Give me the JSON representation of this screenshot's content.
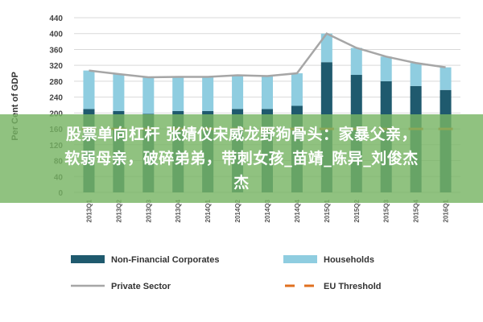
{
  "chart_data": {
    "type": "bar",
    "ylabel": "Per Cent of GDP",
    "ylim": [
      0,
      440
    ],
    "yticks": [
      0,
      40,
      80,
      120,
      160,
      200,
      240,
      280,
      320,
      360,
      400,
      440
    ],
    "categories": [
      "2013Q1",
      "2013Q2",
      "2013Q3",
      "2013Q4",
      "2014Q1",
      "2014Q2",
      "2014Q3",
      "2014Q4",
      "2015Q1",
      "2015Q2",
      "2015Q3",
      "2015Q4",
      "2016Q1"
    ],
    "series": [
      {
        "name": "Non-Financial Corporates",
        "kind": "bar",
        "color": "#1f5a6e",
        "values": [
          210,
          205,
          198,
          205,
          205,
          210,
          210,
          218,
          328,
          296,
          280,
          268,
          258
        ]
      },
      {
        "name": "Households",
        "kind": "bar",
        "color": "#8fcde0",
        "values": [
          97,
          93,
          92,
          86,
          86,
          85,
          83,
          82,
          72,
          68,
          62,
          58,
          57
        ]
      },
      {
        "name": "Private Sector",
        "kind": "line",
        "color": "#a6a6a6",
        "values": [
          307,
          298,
          290,
          291,
          291,
          295,
          293,
          300,
          400,
          364,
          342,
          326,
          315
        ]
      },
      {
        "name": "EU Threshold",
        "kind": "dashed",
        "color": "#e07020",
        "values": [
          160,
          160,
          160,
          160,
          160,
          160,
          160,
          160,
          160,
          160,
          160,
          160,
          160
        ]
      }
    ],
    "legend_position": "bottom",
    "grid": true
  },
  "overlay": {
    "line1": "股票单向杠杆 张婧仪宋威龙野狗骨头：家暴父亲，",
    "line2": "软弱母亲，破碎弟弟，带刺女孩_苗靖_陈异_刘俊杰",
    "line3": "杰"
  }
}
